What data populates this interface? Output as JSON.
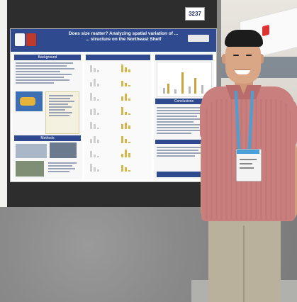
{
  "booth_number": "3237",
  "poster": {
    "title_line1": "Does size matter? Analyzing spatial variation of ...",
    "title_line2": "... structure on the Northeast Shelf",
    "sections": [
      "Background",
      "Methods",
      "Conclusions"
    ]
  },
  "colors": {
    "poster_header": "#2f4a8f",
    "shirt": "#c97f7e",
    "lanyard": "#4a9fd6",
    "board": "#2d2d2d",
    "carpet": "#8a8a8a"
  }
}
